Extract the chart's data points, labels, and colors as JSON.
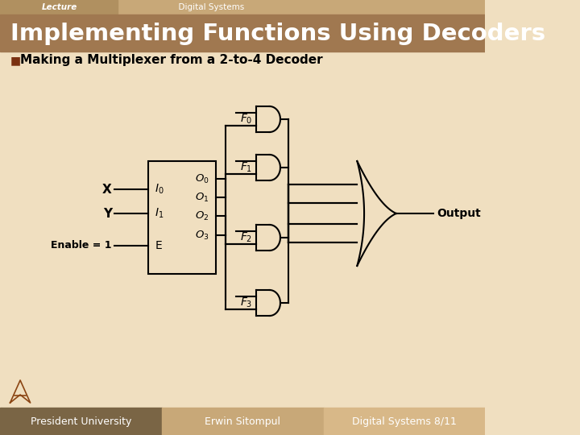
{
  "slide_bg": "#f0dfc0",
  "header_bar_color": "#c8a878",
  "header_text1": "Lecture",
  "header_text2": "  Digital Systems",
  "title_bg": "#a07850",
  "title_color": "#ffffff",
  "title_text": "Implementing Functions Using Decoders",
  "bullet_text": "Making a Multiplexer from a 2-to-4 Decoder",
  "bullet_color": "#7a3010",
  "footer_bg1": "#7a6545",
  "footer_bg2": "#c8a878",
  "footer_bg3": "#d8b888",
  "footer_text1": "President University",
  "footer_text2": "Erwin Sitompul",
  "footer_text3": "Digital Systems 8/11",
  "lc": "#000000",
  "lw": 1.5
}
